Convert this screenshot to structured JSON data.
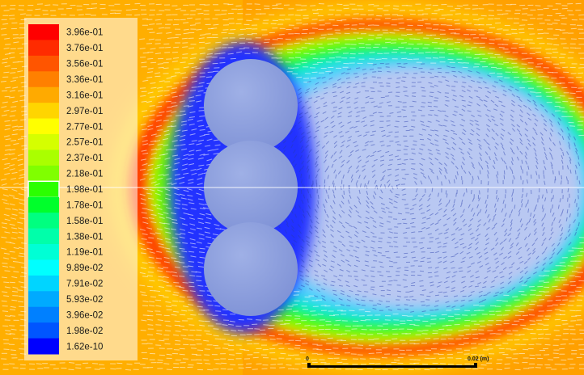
{
  "colorbar": {
    "labels": [
      "3.96e-01",
      "3.76e-01",
      "3.56e-01",
      "3.36e-01",
      "3.16e-01",
      "2.97e-01",
      "2.77e-01",
      "2.57e-01",
      "2.37e-01",
      "2.18e-01",
      "1.98e-01",
      "1.78e-01",
      "1.58e-01",
      "1.38e-01",
      "1.19e-01",
      "9.89e-02",
      "7.91e-02",
      "5.93e-02",
      "3.96e-02",
      "1.98e-02",
      "1.62e-10"
    ],
    "colors": [
      "#ff0000",
      "#ff2b00",
      "#ff5500",
      "#ff8000",
      "#ffaa00",
      "#ffd500",
      "#ffff00",
      "#d5ff00",
      "#aaff00",
      "#80ff00",
      "#2bff00",
      "#00ff2b",
      "#00ff80",
      "#00ffaa",
      "#00ffd5",
      "#00ffff",
      "#00d5ff",
      "#00aaff",
      "#0080ff",
      "#0055ff",
      "#0000ff"
    ],
    "highlighted_index": 10
  },
  "scale_bar": {
    "start_label": "0",
    "end_label": "0.02 (m)"
  }
}
